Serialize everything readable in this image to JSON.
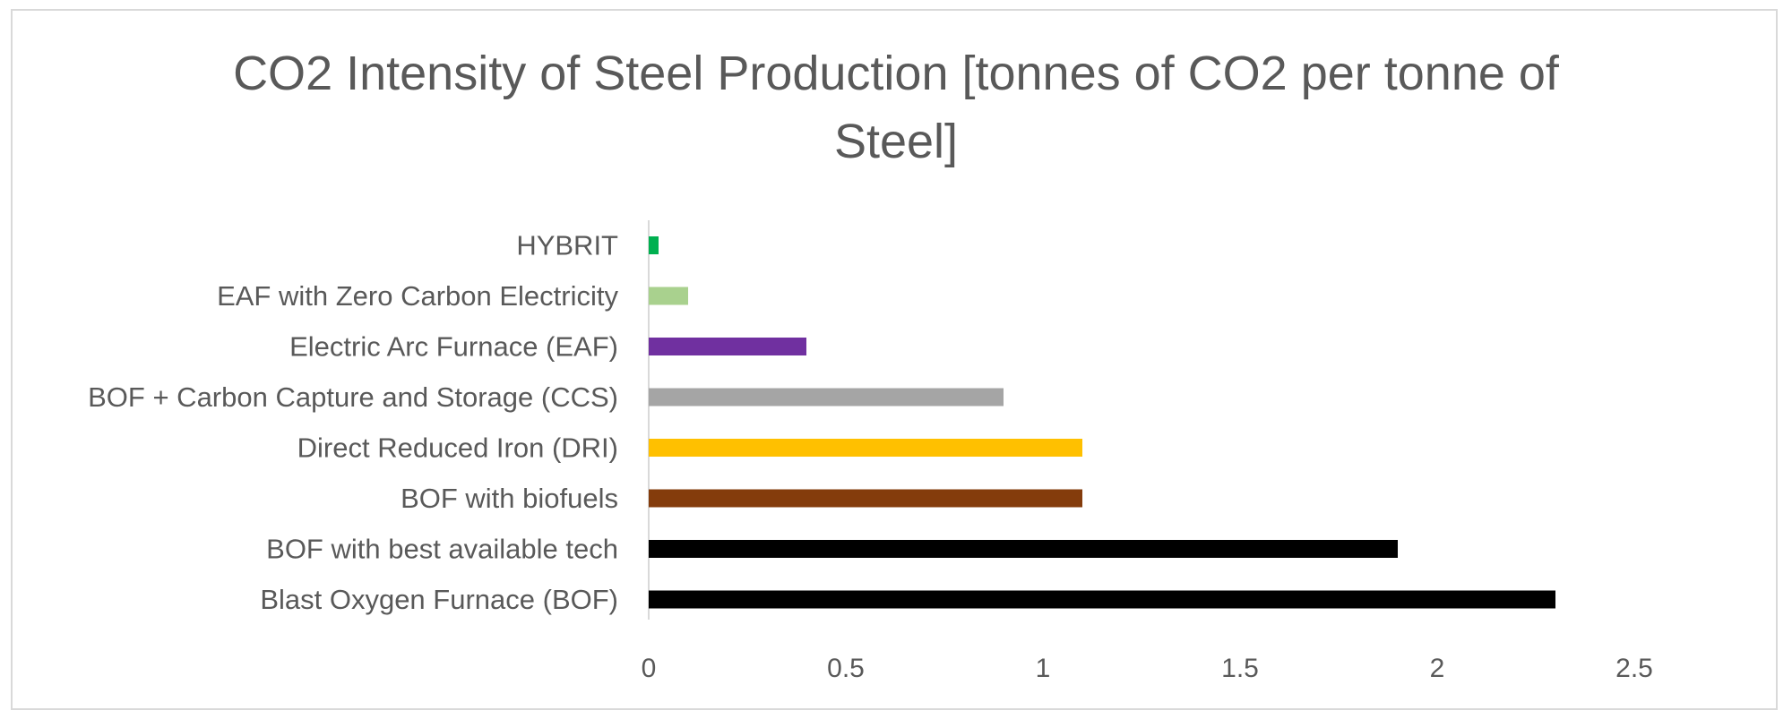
{
  "chart_data": {
    "type": "bar",
    "orientation": "horizontal",
    "title_lines": [
      "CO2 Intensity of Steel Production [tonnes of CO2 per tonne of",
      "Steel]"
    ],
    "title": "CO2 Intensity of Steel Production [tonnes of CO2 per tonne of Steel]",
    "xlabel": "",
    "ylabel": "",
    "xlim": [
      0,
      2.5
    ],
    "ticks": [
      "0",
      "0.5",
      "1",
      "1.5",
      "2",
      "2.5"
    ],
    "tick_values": [
      0,
      0.5,
      1,
      1.5,
      2,
      2.5
    ],
    "grid": false,
    "legend": "none",
    "categories": [
      "HYBRIT",
      "EAF with Zero Carbon Electricity",
      "Electric Arc Furnace (EAF)",
      "BOF + Carbon Capture and Storage (CCS)",
      "Direct Reduced Iron (DRI)",
      "BOF with biofuels",
      "BOF with best available tech",
      "Blast Oxygen Furnace (BOF)"
    ],
    "values": [
      0.025,
      0.1,
      0.4,
      0.9,
      1.1,
      1.1,
      1.9,
      2.3
    ],
    "colors": [
      "#00b050",
      "#a9d18e",
      "#7030a0",
      "#a5a5a5",
      "#ffc000",
      "#843c0c",
      "#000000",
      "#000000"
    ]
  }
}
